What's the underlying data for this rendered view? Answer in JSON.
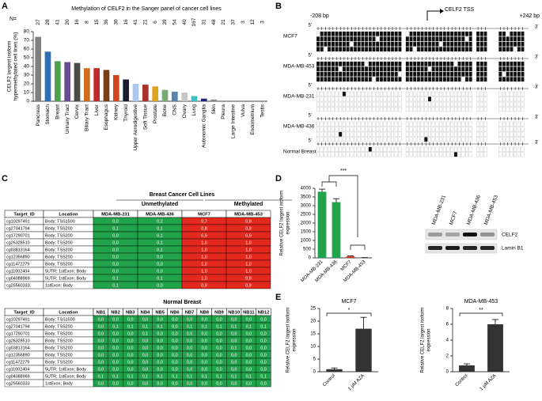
{
  "panel_labels": [
    "A",
    "B",
    "C",
    "D",
    "E"
  ],
  "chart_data": [
    {
      "type": "bar",
      "title": "Methylation of CELF2 in the Sanger panel of cancer cell lines",
      "ylabel": [
        "CELF2 largest isoform",
        "hypermethylated cell lines (%)"
      ],
      "n_label": "N=",
      "n": [
        "27",
        "28",
        "41",
        "20",
        "16",
        "8",
        "15",
        "36",
        "30",
        "16",
        "41",
        "21",
        "6",
        "39",
        "54",
        "40",
        "167",
        "31",
        "48",
        "21",
        "37",
        "3",
        "12",
        "3"
      ],
      "categories": [
        "Pancreas",
        "Stomach",
        "Breast",
        "Urinary Tract",
        "Cervix",
        "Biliary Tract",
        "Liver",
        "Esophagus",
        "Kidney",
        "Thyroid",
        "Upper Aerodigestive",
        "Soft Tissue",
        "Prostate",
        "Bone",
        "CNS",
        "Ovary",
        "Lung",
        "Autonomic Ganglia",
        "Skin",
        "Pleura",
        "Large Intestine",
        "Vulva",
        "Endometrium",
        "Testis"
      ],
      "values": [
        74,
        57,
        46,
        45,
        44,
        38,
        38,
        36,
        30,
        25,
        20,
        19,
        17,
        13,
        11,
        10,
        6,
        3,
        2,
        0,
        0,
        0,
        0,
        0
      ],
      "colors": [
        "#7f7f7f",
        "#2f6fb5",
        "#4ea24e",
        "#6a4a96",
        "#4a4a4a",
        "#d06a20",
        "#c0282a",
        "#7a3f16",
        "#d0451b",
        "#1c1c30",
        "#a9c8ea",
        "#a8322c",
        "#e0a420",
        "#77aa77",
        "#5785b0",
        "#c8c8c8",
        "#3fbfc4",
        "#1a237e",
        "#8a8a8a",
        "#999999",
        "#999999",
        "#999999",
        "#999999",
        "#999999"
      ],
      "ylim": [
        0,
        80
      ],
      "yticks": [
        0,
        10,
        20,
        30,
        40,
        50,
        60,
        70,
        80
      ]
    },
    {
      "type": "bar",
      "ylabel": [
        "Relative CELF2 largest isoform",
        "expression"
      ],
      "categories": [
        "MDA-MB-231",
        "MDA-MB-436",
        "MCF7",
        "MDA-MB-453"
      ],
      "values": [
        3800,
        3200,
        80,
        10
      ],
      "errors": [
        150,
        200,
        30,
        5
      ],
      "colors": [
        "#21a24b",
        "#21a24b",
        "#e3281e",
        "#e3281e"
      ],
      "annotation": "***",
      "ylim": [
        0,
        4000
      ],
      "yticks": [
        0,
        500,
        1000,
        1500,
        2000,
        2500,
        3000,
        3500,
        4000
      ]
    },
    {
      "type": "bar",
      "title": "MCF7",
      "ylabel": [
        "Relative CELF2 largest isoform",
        "expression"
      ],
      "categories": [
        "Control",
        "1 µM AZA"
      ],
      "values": [
        1,
        17
      ],
      "errors": [
        0.5,
        4.5
      ],
      "color": "#333333",
      "annotation": "*",
      "ylim": [
        0,
        25
      ],
      "yticks": [
        0,
        5,
        10,
        15,
        20,
        25
      ]
    },
    {
      "type": "bar",
      "title": "MDA-MB-453",
      "ylabel": [
        "Relative CELF2 largest isoform",
        "expression"
      ],
      "categories": [
        "Control",
        "1 µM AZA"
      ],
      "values": [
        0.8,
        6
      ],
      "errors": [
        0.2,
        0.6
      ],
      "color": "#333333",
      "annotation": "**",
      "ylim": [
        0,
        8
      ],
      "yticks": [
        0,
        2,
        4,
        6,
        8
      ]
    }
  ],
  "methylation": {
    "start": "-208 bp",
    "end": "+242 bp",
    "tss": "CELF2 TSS",
    "five": "5'",
    "three": "3'",
    "samples": [
      {
        "name": "MCF7",
        "pattern": "methylated"
      },
      {
        "name": "MDA-MB-453",
        "pattern": "methylated"
      },
      {
        "name": "MDA-MB-231",
        "pattern": "unmethylated"
      },
      {
        "name": "MDA-MB-436",
        "pattern": "unmethylated"
      },
      {
        "name": "Normal Breast",
        "pattern": "unmethylated"
      }
    ]
  },
  "western": {
    "lanes": [
      "MDA-MB-231",
      "MCF7",
      "MDA-MB-436",
      "MDA-MB-453"
    ],
    "bands": [
      "CELF2",
      "Lamin B1"
    ]
  },
  "tables": [
    {
      "title": "Breast Cancer Cell Lines",
      "groups": [
        "Unmethylated",
        "Methylated"
      ],
      "columns": [
        "Target_ID",
        "Location",
        "MDA-MB-231",
        "MDA-MB-436",
        "MCF7",
        "MDA-MB-453"
      ],
      "rows": [
        [
          "cg10297491",
          "Body; TSS1500",
          "0,0",
          "0,2",
          "0,7",
          "0,9"
        ],
        [
          "cg27041794",
          "Body; TSS200",
          "0,1",
          "0,1",
          "0,8",
          "0,9"
        ],
        [
          "cg17290701",
          "Body; TSS200",
          "0,0",
          "0,1",
          "0,9",
          "0,9"
        ],
        [
          "cg26328510",
          "Body; TSS200",
          "0,0",
          "0,1",
          "1,0",
          "1,0"
        ],
        [
          "cg03813164",
          "Body; TSS200",
          "0,0",
          "0,1",
          "1,0",
          "1,0"
        ],
        [
          "cg12356890",
          "Body; TSS200",
          "0,0",
          "0,0",
          "1,0",
          "1,0"
        ],
        [
          "cg11472279",
          "Body; TSS200",
          "0,0",
          "0,0",
          "1,0",
          "1,0"
        ],
        [
          "cg11002404",
          "5UTR; 1stExon; Body",
          "0,0",
          "0,0",
          "1,0",
          "1,0"
        ],
        [
          "cg04088969",
          "5UTR; 1stExon; Body",
          "0,1",
          "0,1",
          "1,0",
          "0,9"
        ],
        [
          "cg25560333",
          "1stExon; Body",
          "0,1",
          "0,0",
          "0,9",
          "0,9"
        ]
      ]
    },
    {
      "title": "Normal Breast",
      "columns": [
        "Target_ID",
        "Location",
        "NB1",
        "NB2",
        "NB3",
        "NB4",
        "NB5",
        "NB6",
        "NB7",
        "NB8",
        "NB9",
        "NB10",
        "NB11",
        "NB12"
      ],
      "rows": [
        [
          "cg10297491",
          "Body; TSS1500",
          "0,0",
          "0,0",
          "0,0",
          "0,0",
          "0,0",
          "0,0",
          "0,0",
          "0,0",
          "0,0",
          "0,0",
          "0,0",
          "0,0"
        ],
        [
          "cg27041794",
          "Body; TSS200",
          "0,0",
          "0,1",
          "0,1",
          "0,1",
          "0,1",
          "0,0",
          "0,1",
          "0,1",
          "0,1",
          "0,1",
          "0,1",
          "0,1"
        ],
        [
          "cg17290701",
          "Body; TSS200",
          "0,0",
          "0,0",
          "0,0",
          "0,1",
          "0,0",
          "0,0",
          "0,0",
          "0,0",
          "0,0",
          "0,0",
          "0,0",
          "0,0"
        ],
        [
          "cg26328510",
          "Body; TSS200",
          "0,0",
          "0,0",
          "0,0",
          "0,0",
          "0,0",
          "0,0",
          "0,0",
          "0,0",
          "0,0",
          "0,0",
          "0,0",
          "0,0"
        ],
        [
          "cg03813164",
          "Body; TSS200",
          "0,0",
          "0,0",
          "0,0",
          "0,0",
          "0,0",
          "0,0",
          "0,0",
          "0,0",
          "0,0",
          "0,1",
          "0,0",
          "0,0"
        ],
        [
          "cg12356890",
          "Body; TSS200",
          "0,0",
          "0,0",
          "0,0",
          "0,0",
          "0,0",
          "0,0",
          "0,0",
          "0,0",
          "0,0",
          "0,0",
          "0,0",
          "0,0"
        ],
        [
          "cg11472279",
          "Body; TSS200",
          "0,0",
          "0,0",
          "0,0",
          "0,0",
          "0,0",
          "0,0",
          "0,0",
          "0,0",
          "0,0",
          "0,0",
          "0,0",
          "0,0"
        ],
        [
          "cg11002404",
          "5UTR; 1stExon; Body",
          "0,0",
          "0,0",
          "0,0",
          "0,0",
          "0,0",
          "0,0",
          "0,0",
          "0,0",
          "0,0",
          "0,0",
          "0,0",
          "0,0"
        ],
        [
          "cg04088969",
          "5UTR; 1stExon; Body",
          "0,1",
          "0,1",
          "0,1",
          "0,1",
          "0,1",
          "0,1",
          "0,1",
          "0,1",
          "0,1",
          "0,1",
          "0,1",
          "0,1"
        ],
        [
          "cg25560333",
          "1stExon; Body",
          "0,0",
          "0,0",
          "0,0",
          "0,0",
          "0,0",
          "0,0",
          "0,0",
          "0,0",
          "0,0",
          "0,0",
          "0,0",
          "0,0"
        ]
      ]
    }
  ]
}
